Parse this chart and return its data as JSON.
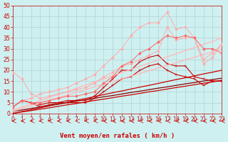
{
  "xlabel": "Vent moyen/en rafales ( km/h )",
  "background_color": "#cff0f0",
  "grid_color": "#aacccc",
  "xlim": [
    0,
    23
  ],
  "ylim": [
    0,
    50
  ],
  "yticks": [
    0,
    5,
    10,
    15,
    20,
    25,
    30,
    35,
    40,
    45,
    50
  ],
  "xticks": [
    0,
    1,
    2,
    3,
    4,
    5,
    6,
    7,
    8,
    9,
    10,
    11,
    12,
    13,
    14,
    15,
    16,
    17,
    18,
    19,
    20,
    21,
    22,
    23
  ],
  "lines": [
    {
      "x": [
        0,
        1,
        2,
        3,
        4,
        5,
        6,
        7,
        8,
        9,
        10,
        11,
        12,
        13,
        14,
        15,
        16,
        17,
        18,
        19,
        20,
        21,
        22,
        23
      ],
      "y": [
        0.0,
        0.7,
        1.3,
        2.0,
        2.6,
        3.3,
        4.0,
        4.6,
        5.3,
        6.0,
        6.6,
        7.3,
        8.0,
        8.6,
        9.3,
        10.0,
        10.6,
        11.3,
        12.0,
        12.6,
        13.3,
        14.0,
        14.6,
        15.3
      ],
      "color": "#cc0000",
      "marker": null,
      "markersize": 0,
      "linewidth": 0.9,
      "linestyle": "-"
    },
    {
      "x": [
        0,
        1,
        2,
        3,
        4,
        5,
        6,
        7,
        8,
        9,
        10,
        11,
        12,
        13,
        14,
        15,
        16,
        17,
        18,
        19,
        20,
        21,
        22,
        23
      ],
      "y": [
        0.0,
        0.9,
        1.7,
        2.6,
        3.5,
        4.3,
        5.2,
        6.1,
        6.9,
        7.8,
        8.7,
        9.6,
        10.4,
        11.3,
        12.2,
        13.0,
        13.9,
        14.8,
        15.7,
        16.5,
        17.4,
        18.3,
        19.1,
        20.0
      ],
      "color": "#cc0000",
      "marker": null,
      "markersize": 0,
      "linewidth": 0.9,
      "linestyle": "-"
    },
    {
      "x": [
        0,
        1,
        2,
        3,
        4,
        5,
        6,
        7,
        8,
        9,
        10,
        11,
        12,
        13,
        14,
        15,
        16,
        17,
        18,
        19,
        20,
        21,
        22,
        23
      ],
      "y": [
        1.0,
        1.6,
        2.3,
        3.0,
        3.7,
        4.3,
        5.0,
        5.7,
        6.3,
        7.0,
        7.7,
        8.3,
        9.0,
        9.7,
        10.3,
        11.0,
        11.7,
        12.3,
        13.0,
        13.7,
        14.3,
        15.0,
        15.7,
        16.3
      ],
      "color": "#880000",
      "marker": null,
      "markersize": 0,
      "linewidth": 0.9,
      "linestyle": "-"
    },
    {
      "x": [
        0,
        1,
        2,
        3,
        4,
        5,
        6,
        7,
        8,
        9,
        10,
        11,
        12,
        13,
        14,
        15,
        16,
        17,
        18,
        19,
        20,
        21,
        22,
        23
      ],
      "y": [
        3,
        6,
        5,
        4,
        5,
        5,
        6,
        6,
        6,
        8,
        12,
        16,
        20,
        20,
        24,
        26,
        27,
        23,
        22,
        22,
        17,
        16,
        15,
        15
      ],
      "color": "#cc0000",
      "marker": "+",
      "markersize": 3,
      "linewidth": 0.8,
      "linestyle": "-"
    },
    {
      "x": [
        0,
        1,
        2,
        3,
        4,
        5,
        6,
        7,
        8,
        9,
        10,
        11,
        12,
        13,
        14,
        15,
        16,
        17,
        18,
        19,
        20,
        21,
        22,
        23
      ],
      "y": [
        3,
        6,
        5,
        3,
        4,
        5,
        5,
        5,
        5,
        7,
        10,
        13,
        16,
        17,
        20,
        22,
        23,
        20,
        18,
        17,
        16,
        13,
        15,
        15
      ],
      "color": "#cc0000",
      "marker": "+",
      "markersize": 3,
      "linewidth": 0.8,
      "linestyle": "-"
    },
    {
      "x": [
        0,
        1,
        2,
        3,
        4,
        5,
        6,
        7,
        8,
        9,
        10,
        11,
        12,
        13,
        14,
        15,
        16,
        17,
        18,
        19,
        20,
        21,
        22,
        23
      ],
      "y": [
        1.0,
        2.3,
        3.5,
        4.8,
        6.0,
        7.3,
        8.5,
        9.8,
        11.0,
        12.3,
        13.5,
        14.8,
        16.0,
        17.3,
        18.5,
        19.8,
        21.0,
        22.3,
        23.5,
        24.8,
        26.0,
        27.3,
        28.5,
        29.8
      ],
      "color": "#ffbbbb",
      "marker": null,
      "markersize": 0,
      "linewidth": 1.0,
      "linestyle": "-"
    },
    {
      "x": [
        0,
        1,
        2,
        3,
        4,
        5,
        6,
        7,
        8,
        9,
        10,
        11,
        12,
        13,
        14,
        15,
        16,
        17,
        18,
        19,
        20,
        21,
        22,
        23
      ],
      "y": [
        1.5,
        3.0,
        4.4,
        5.9,
        7.3,
        8.8,
        10.2,
        11.7,
        13.1,
        14.6,
        16.0,
        17.5,
        18.9,
        20.4,
        21.8,
        23.3,
        24.7,
        26.2,
        27.6,
        29.1,
        30.5,
        32.0,
        33.4,
        34.9
      ],
      "color": "#ffbbbb",
      "marker": null,
      "markersize": 0,
      "linewidth": 1.0,
      "linestyle": "-"
    },
    {
      "x": [
        0,
        1,
        2,
        3,
        4,
        5,
        6,
        7,
        8,
        9,
        10,
        11,
        12,
        13,
        14,
        15,
        16,
        17,
        18,
        19,
        20,
        21,
        22,
        23
      ],
      "y": [
        19,
        16,
        9,
        7,
        8,
        9,
        10,
        11,
        12,
        14,
        17,
        19,
        22,
        23,
        25,
        27,
        29,
        40,
        34,
        35,
        35,
        25,
        28,
        32
      ],
      "color": "#ffaaaa",
      "marker": "D",
      "markersize": 2,
      "linewidth": 0.7,
      "linestyle": "-"
    },
    {
      "x": [
        0,
        1,
        2,
        3,
        4,
        5,
        6,
        7,
        8,
        9,
        10,
        11,
        12,
        13,
        14,
        15,
        16,
        17,
        18,
        19,
        20,
        21,
        22,
        23
      ],
      "y": [
        3,
        6,
        7,
        9,
        10,
        11,
        12,
        14,
        16,
        18,
        22,
        26,
        30,
        36,
        40,
        42,
        42,
        47,
        39,
        40,
        35,
        23,
        26,
        32
      ],
      "color": "#ffaaaa",
      "marker": "D",
      "markersize": 2,
      "linewidth": 0.7,
      "linestyle": "-"
    },
    {
      "x": [
        0,
        1,
        2,
        3,
        4,
        5,
        6,
        7,
        8,
        9,
        10,
        11,
        12,
        13,
        14,
        15,
        16,
        17,
        18,
        19,
        20,
        21,
        22,
        23
      ],
      "y": [
        3,
        6,
        5,
        5,
        6,
        7,
        8,
        8,
        9,
        10,
        14,
        17,
        22,
        24,
        28,
        30,
        33,
        36,
        35,
        36,
        35,
        30,
        30,
        28
      ],
      "color": "#ff6666",
      "marker": "D",
      "markersize": 2,
      "linewidth": 0.7,
      "linestyle": "-"
    }
  ],
  "xlabel_color": "#cc0000",
  "xlabel_fontsize": 6.5,
  "tick_fontsize": 5.5,
  "tick_color": "#cc0000",
  "spine_color": "#cc0000"
}
